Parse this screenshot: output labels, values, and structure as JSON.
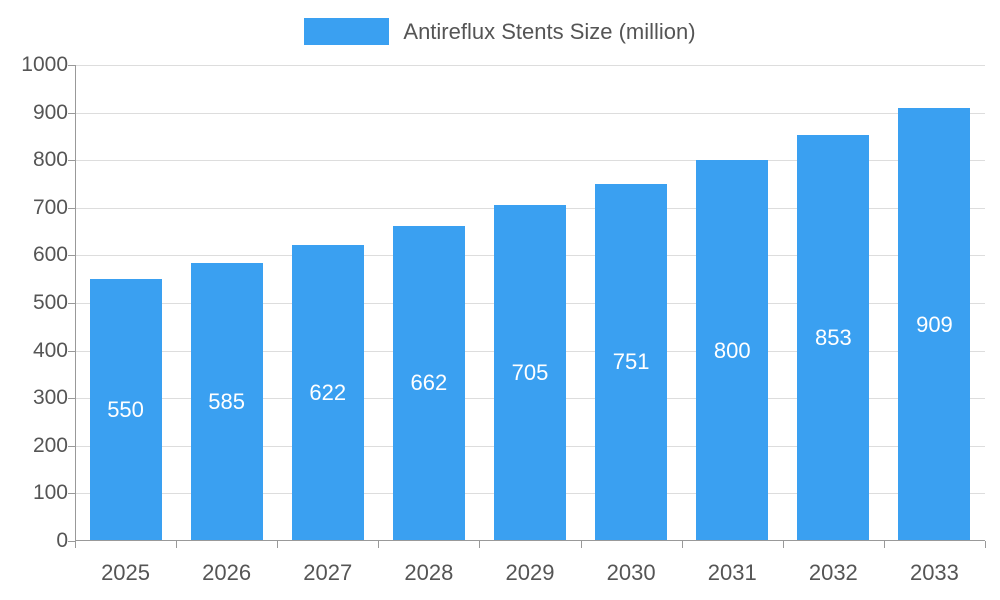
{
  "chart_data": {
    "type": "bar",
    "title": "Antireflux Stents Size (million)",
    "categories": [
      "2025",
      "2026",
      "2027",
      "2028",
      "2029",
      "2030",
      "2031",
      "2032",
      "2033"
    ],
    "values": [
      550,
      585,
      622,
      662,
      705,
      751,
      800,
      853,
      909
    ],
    "xlabel": "",
    "ylabel": "",
    "ylim": [
      0,
      1000
    ],
    "ytick_step": 100,
    "grid": true,
    "legend_position": "top-center",
    "bar_color": "#3aa0f1",
    "value_label_color": "#ffffff",
    "axis_color": "#999999",
    "grid_color": "#dddddd",
    "text_color": "#555555"
  }
}
